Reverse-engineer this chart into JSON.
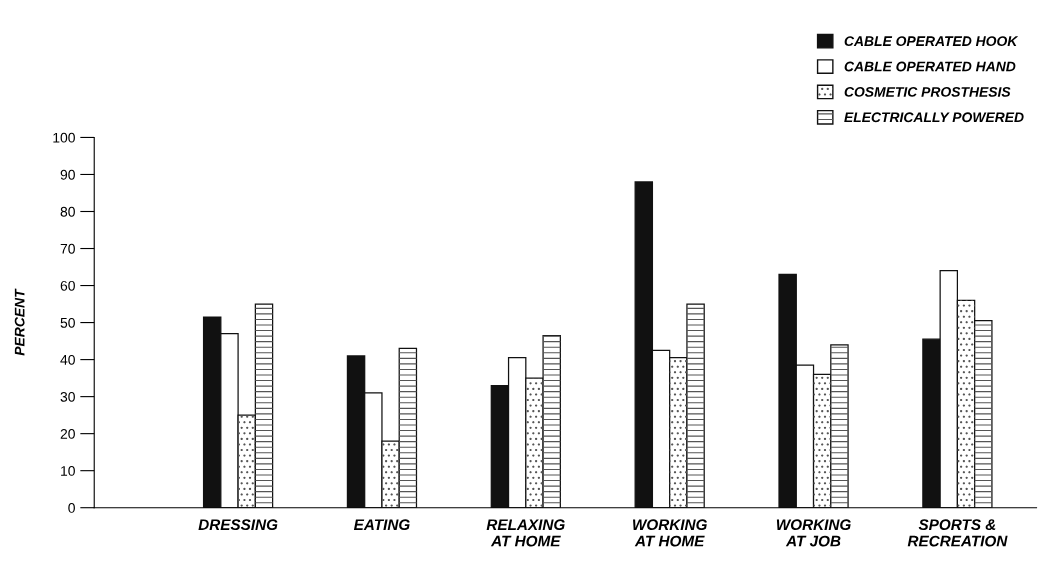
{
  "chart_data": {
    "type": "bar",
    "ylabel": "PERCENT",
    "categories": [
      "DRESSING",
      "EATING",
      "RELAXING\nAT HOME",
      "WORKING\nAT HOME",
      "WORKING\nAT JOB",
      "SPORTS &\nRECREATION"
    ],
    "series": [
      {
        "name": "CABLE OPERATED HOOK",
        "color": "#111111",
        "values": [
          51.5,
          41,
          33,
          88,
          63,
          45.5
        ]
      },
      {
        "name": "CABLE OPERATED HAND",
        "color": "#ffffff",
        "values": [
          47,
          31,
          40.5,
          42.5,
          38.5,
          64
        ]
      },
      {
        "name": "COSMETIC PROSTHESIS",
        "color": "#ffffff",
        "values": [
          25,
          18,
          35,
          40.5,
          36,
          56
        ]
      },
      {
        "name": "ELECTRICALLY POWERED",
        "color": "#ffffff",
        "values": [
          55,
          43,
          46.5,
          55,
          44,
          50.5
        ]
      }
    ],
    "ylim": [
      0,
      100
    ],
    "yticks": [
      0,
      10,
      20,
      30,
      40,
      50,
      60,
      70,
      80,
      90,
      100
    ],
    "grid": false,
    "legend": "top right"
  }
}
